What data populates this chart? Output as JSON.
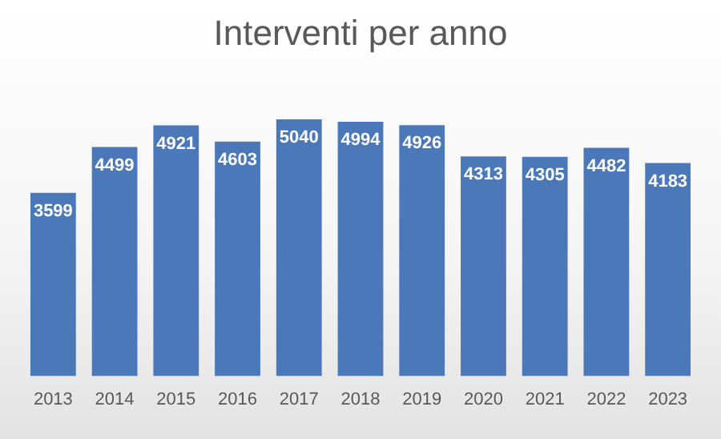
{
  "chart_data": {
    "type": "bar",
    "title": "Interventi per anno",
    "categories": [
      "2013",
      "2014",
      "2015",
      "2016",
      "2017",
      "2018",
      "2019",
      "2020",
      "2021",
      "2022",
      "2023"
    ],
    "values": [
      3599,
      4499,
      4921,
      4603,
      5040,
      4994,
      4926,
      4313,
      4305,
      4482,
      4183
    ],
    "color": "#4a78b8",
    "data_labels": true,
    "grid": false,
    "legend": false
  }
}
